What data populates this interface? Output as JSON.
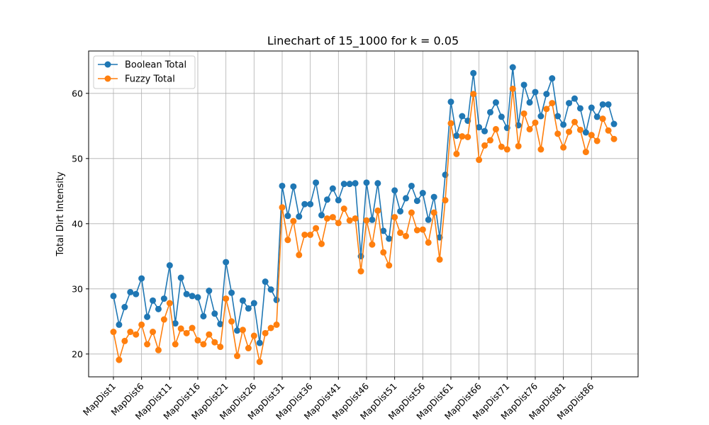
{
  "chart_data": {
    "type": "line",
    "title": "Linechart of 15_1000 for k = 0.05",
    "xlabel": "",
    "ylabel": "Total Dirt Intensity",
    "ylim": [
      16.5,
      66.5
    ],
    "yticks": [
      20,
      30,
      40,
      50,
      60
    ],
    "x_tick_labels": [
      "MapDist1",
      "MapDist6",
      "MapDist11",
      "MapDist16",
      "MapDist21",
      "MapDist26",
      "MapDist31",
      "MapDist36",
      "MapDist41",
      "MapDist46",
      "MapDist51",
      "MapDist56",
      "MapDist61",
      "MapDist66",
      "MapDist71",
      "MapDist76",
      "MapDist81",
      "MapDist86"
    ],
    "x_tick_every": 5,
    "grid": true,
    "legend_position": "top-left",
    "series": [
      {
        "name": "Boolean Total",
        "color": "#1f77b4",
        "values": [
          28.9,
          24.5,
          27.2,
          29.5,
          29.2,
          31.6,
          25.7,
          28.2,
          26.9,
          28.5,
          33.6,
          24.7,
          31.7,
          29.2,
          28.9,
          28.7,
          25.8,
          29.7,
          26.2,
          24.6,
          34.1,
          29.4,
          23.6,
          28.2,
          27.0,
          27.8,
          21.7,
          31.1,
          29.9,
          28.3,
          45.8,
          41.2,
          45.7,
          41.1,
          43.0,
          43.0,
          46.3,
          41.3,
          43.7,
          45.4,
          43.6,
          46.1,
          46.1,
          46.2,
          35.0,
          46.3,
          40.6,
          46.2,
          38.9,
          37.7,
          45.1,
          41.9,
          43.9,
          45.8,
          43.5,
          44.7,
          40.6,
          44.1,
          37.9,
          47.5,
          58.7,
          53.5,
          56.5,
          55.8,
          63.1,
          54.8,
          54.2,
          57.1,
          58.6,
          56.4,
          54.7,
          64.0,
          55.1,
          61.3,
          58.6,
          60.2,
          56.5,
          59.9,
          62.3,
          56.5,
          55.2,
          58.5,
          59.2,
          57.7,
          54.0,
          57.8,
          56.4,
          58.3,
          58.3,
          55.3
        ]
      },
      {
        "name": "Fuzzy Total",
        "color": "#ff7f0e",
        "values": [
          23.4,
          19.1,
          22.0,
          23.4,
          23.0,
          24.5,
          21.5,
          23.4,
          20.6,
          25.3,
          27.8,
          21.5,
          23.9,
          23.2,
          24.0,
          22.1,
          21.5,
          23.0,
          21.8,
          21.1,
          28.5,
          25.0,
          19.7,
          23.7,
          20.9,
          22.8,
          18.8,
          23.2,
          24.0,
          24.5,
          42.5,
          37.5,
          40.4,
          35.2,
          38.3,
          38.3,
          39.3,
          36.9,
          40.8,
          41.0,
          40.1,
          42.3,
          40.5,
          40.8,
          32.7,
          40.5,
          36.8,
          42.0,
          35.6,
          33.6,
          41.0,
          38.6,
          38.1,
          41.7,
          39.0,
          39.1,
          37.1,
          41.7,
          34.5,
          43.6,
          55.4,
          50.7,
          53.4,
          53.3,
          59.9,
          49.8,
          52.0,
          52.8,
          54.5,
          51.8,
          51.4,
          60.7,
          51.9,
          56.9,
          54.5,
          55.5,
          51.4,
          57.6,
          58.5,
          53.8,
          51.7,
          54.1,
          55.6,
          54.4,
          51.0,
          53.6,
          52.7,
          56.1,
          54.3,
          53.0
        ]
      }
    ]
  }
}
